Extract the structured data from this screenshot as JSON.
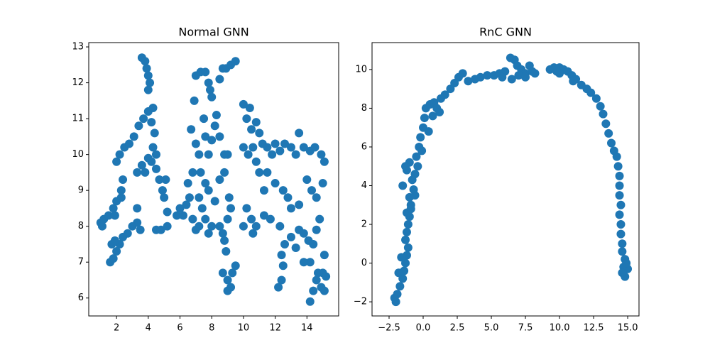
{
  "chart_data": [
    {
      "type": "scatter",
      "title": "Normal GNN",
      "color": "#1f77b4",
      "xlim": [
        0.25,
        16.0
      ],
      "ylim": [
        5.5,
        13.12
      ],
      "xticks": [
        2,
        4,
        6,
        8,
        10,
        12,
        14
      ],
      "yticks": [
        6,
        7,
        8,
        9,
        10,
        11,
        12,
        13
      ],
      "x": [
        1.0,
        1.2,
        1.5,
        1.1,
        1.6,
        1.8,
        2.0,
        2.2,
        2.4,
        2.7,
        3.0,
        3.3,
        1.7,
        1.9,
        2.0,
        2.2,
        2.5,
        2.8,
        3.1,
        3.4,
        3.7,
        4.0,
        4.3,
        3.6,
        3.8,
        3.9,
        4.0,
        4.1,
        4.0,
        4.2,
        4.4,
        4.3,
        4.5,
        4.2,
        4.5,
        3.8,
        3.6,
        4.0,
        3.3,
        1.8,
        2.0,
        2.3,
        2.4,
        1.9,
        2.3,
        4.7,
        4.9,
        5.1,
        5.0,
        5.2,
        4.5,
        4.8,
        5.2,
        3.3,
        3.5,
        5.8,
        6.0,
        6.2,
        6.4,
        6.5,
        6.6,
        6.8,
        7.0,
        7.2,
        6.7,
        6.9,
        7.0,
        7.3,
        7.6,
        7.8,
        7.9,
        8.0,
        8.3,
        7.5,
        7.6,
        7.8,
        8.0,
        8.2,
        8.5,
        8.7,
        8.9,
        9.2,
        9.5,
        8.5,
        7.3,
        7.6,
        7.8,
        7.2,
        7.4,
        7.6,
        7.8,
        8.0,
        8.2,
        8.5,
        8.8,
        9.0,
        8.8,
        7.0,
        6.8,
        7.2,
        8.5,
        8.8,
        8.9,
        8.7,
        9.1,
        9.2,
        9.0,
        8.7,
        9.0,
        9.2,
        9.0,
        9.3,
        9.5,
        10.0,
        10.2,
        10.5,
        10.8,
        11.0,
        10.4,
        10.0,
        10.3,
        10.6,
        10.8,
        11.2,
        11.5,
        11.8,
        12.0,
        12.3,
        12.6,
        13.0,
        13.3,
        13.5,
        13.8,
        14.2,
        14.5,
        14.9,
        15.1,
        11.0,
        11.3,
        11.5,
        12.0,
        12.5,
        12.8,
        13.0,
        13.5,
        14.0,
        14.3,
        14.6,
        15.0,
        10.2,
        10.5,
        10.8,
        11.3,
        11.7,
        10.0,
        10.6,
        12.3,
        12.6,
        12.4,
        12.5,
        12.2,
        12.4,
        13.0,
        13.3,
        13.5,
        13.8,
        14.1,
        14.2,
        14.4,
        14.6,
        14.8,
        14.2,
        14.4,
        14.6,
        14.9,
        15.1,
        15.0,
        15.2,
        14.7,
        13.8,
        15.1
      ],
      "y": [
        8.1,
        8.2,
        8.3,
        8.0,
        7.0,
        7.1,
        7.3,
        7.5,
        7.7,
        7.8,
        8.0,
        8.1,
        7.5,
        7.6,
        9.8,
        10.0,
        10.2,
        10.3,
        10.5,
        10.8,
        11.0,
        11.2,
        11.3,
        12.7,
        12.6,
        12.4,
        12.2,
        12.0,
        11.8,
        10.9,
        10.6,
        10.2,
        10.0,
        9.8,
        9.6,
        9.5,
        9.7,
        9.9,
        9.5,
        8.5,
        8.7,
        8.8,
        9.3,
        8.3,
        9.0,
        9.3,
        9.0,
        9.3,
        8.8,
        8.4,
        7.9,
        7.9,
        8.0,
        8.5,
        7.9,
        8.3,
        8.5,
        8.3,
        8.6,
        9.2,
        8.8,
        9.5,
        10.3,
        10.0,
        10.7,
        11.5,
        12.2,
        12.3,
        12.3,
        12.0,
        11.8,
        11.6,
        11.1,
        11.0,
        10.5,
        10.0,
        10.4,
        10.8,
        10.5,
        12.4,
        12.4,
        12.5,
        12.6,
        12.1,
        9.5,
        9.2,
        9.0,
        8.8,
        8.5,
        8.2,
        7.8,
        8.0,
        8.7,
        9.3,
        9.5,
        10.0,
        10.0,
        7.9,
        8.2,
        8.0,
        8.0,
        7.6,
        7.3,
        7.8,
        8.8,
        8.5,
        8.2,
        6.7,
        6.5,
        6.3,
        6.2,
        6.7,
        6.9,
        11.4,
        11.0,
        10.7,
        10.9,
        10.6,
        11.3,
        10.2,
        10.0,
        10.2,
        9.8,
        10.3,
        10.2,
        10.0,
        10.3,
        10.1,
        10.3,
        10.2,
        10.0,
        10.6,
        10.2,
        10.1,
        10.2,
        10.0,
        9.8,
        9.5,
        9.0,
        9.5,
        9.2,
        9.0,
        8.8,
        8.5,
        8.6,
        9.3,
        9.0,
        8.8,
        9.2,
        8.5,
        8.2,
        8.0,
        8.3,
        8.2,
        8.0,
        7.8,
        8.0,
        7.5,
        7.2,
        6.9,
        6.3,
        6.5,
        7.7,
        7.4,
        7.9,
        7.8,
        7.6,
        7.0,
        7.5,
        7.9,
        8.2,
        5.9,
        6.2,
        6.5,
        6.3,
        6.2,
        6.7,
        6.6,
        6.7,
        7.0,
        7.2
      ]
    },
    {
      "type": "scatter",
      "title": "RnC GNN",
      "color": "#1f77b4",
      "xlim": [
        -3.75,
        15.83
      ],
      "ylim": [
        -2.73,
        11.39
      ],
      "xticks": [
        {
          "value": -2.5,
          "label": "−2.5"
        },
        {
          "value": 0,
          "label": "0.0"
        },
        2.5,
        {
          "value": 5,
          "label": "5.0"
        },
        7.5,
        {
          "value": 10,
          "label": "10.0"
        },
        12.5,
        {
          "value": 15,
          "label": "15.0"
        }
      ],
      "yticks": [
        {
          "value": -2,
          "label": "−2"
        },
        0,
        2,
        4,
        6,
        8,
        10
      ],
      "x": [
        -2.0,
        -2.1,
        -1.9,
        -1.7,
        -1.5,
        -1.4,
        -1.3,
        -1.2,
        -1.1,
        -1.3,
        -1.2,
        -1.1,
        -1.0,
        -1.2,
        -0.9,
        -1.0,
        -0.7,
        -0.8,
        -1.2,
        -1.0,
        -0.6,
        -0.4,
        -0.5,
        -0.3,
        -0.2,
        0.0,
        0.1,
        0.2,
        0.5,
        0.8,
        1.0,
        1.3,
        1.6,
        2.0,
        2.3,
        2.6,
        2.9,
        1.2,
        0.7,
        0.4,
        -0.1,
        -0.6,
        -0.9,
        -1.5,
        -1.3,
        -1.6,
        -1.8,
        3.3,
        3.8,
        4.2,
        4.7,
        5.2,
        5.6,
        6.0,
        6.4,
        6.7,
        6.9,
        7.2,
        7.5,
        7.8,
        8.0,
        5.8,
        6.5,
        7.0,
        7.5,
        8.2,
        9.3,
        9.6,
        10.0,
        10.3,
        10.6,
        10.9,
        11.2,
        11.6,
        12.0,
        12.3,
        12.7,
        13.0,
        13.2,
        13.4,
        13.6,
        13.8,
        14.0,
        14.2,
        14.3,
        14.4,
        14.4,
        14.4,
        14.5,
        14.4,
        14.5,
        14.5,
        14.6,
        14.6,
        14.8,
        14.7,
        15.0,
        14.8,
        14.6,
        14.9,
        10.0,
        9.8,
        11.0
      ],
      "y": [
        -2.0,
        -1.8,
        -1.6,
        -1.2,
        -0.8,
        -0.4,
        0.0,
        0.4,
        0.8,
        1.2,
        1.6,
        2.0,
        2.4,
        2.6,
        3.0,
        3.4,
        3.8,
        4.3,
        4.8,
        5.2,
        4.6,
        5.0,
        5.5,
        6.0,
        6.5,
        7.0,
        7.5,
        8.0,
        8.2,
        8.3,
        8.0,
        8.5,
        8.7,
        9.0,
        9.3,
        9.6,
        9.8,
        7.8,
        7.6,
        6.8,
        5.8,
        3.5,
        2.8,
        4.0,
        5.0,
        0.3,
        -0.5,
        9.4,
        9.5,
        9.6,
        9.7,
        9.7,
        9.8,
        9.9,
        10.6,
        10.5,
        10.2,
        10.0,
        9.8,
        10.2,
        9.9,
        9.6,
        9.5,
        9.7,
        9.6,
        9.8,
        10.0,
        10.1,
        10.1,
        10.0,
        9.9,
        9.7,
        9.5,
        9.2,
        9.0,
        8.8,
        8.5,
        8.1,
        7.7,
        7.2,
        6.7,
        6.2,
        5.8,
        5.5,
        5.0,
        4.5,
        4.0,
        3.5,
        3.0,
        2.5,
        2.0,
        1.5,
        1.0,
        0.6,
        0.2,
        -0.2,
        -0.3,
        -0.7,
        -0.5,
        0.0,
        9.8,
        9.9,
        9.4
      ]
    }
  ]
}
